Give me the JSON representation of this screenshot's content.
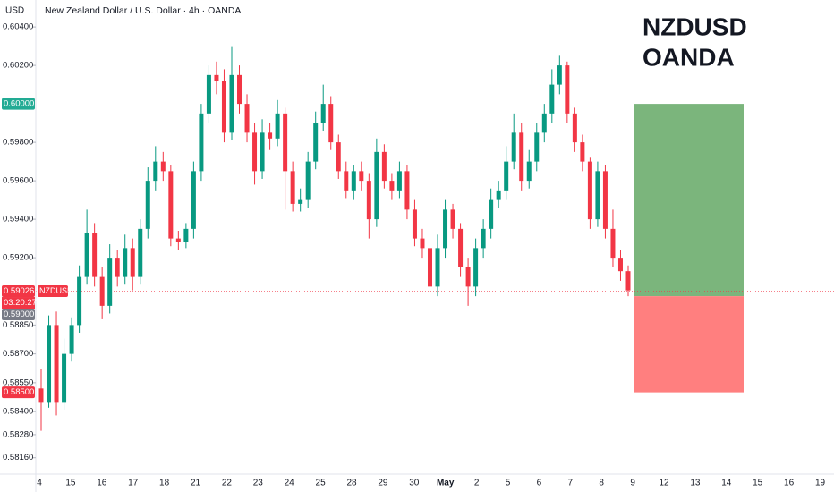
{
  "chart_data": {
    "type": "candlestick",
    "title": "New Zealand Dollar / U.S. Dollar · 4h · OANDA",
    "currency": "USD",
    "annotation": [
      "NZDUSD",
      "OANDA"
    ],
    "symbol": "NZDUSD",
    "countdown": "03:20:27",
    "last_price": {
      "value": 0.59026,
      "label": "0.59026"
    },
    "position": {
      "target": {
        "value": 0.6,
        "label": "0.60000"
      },
      "entry": {
        "value": 0.59,
        "label": "0.59000"
      },
      "stop": {
        "value": 0.585,
        "label": "0.58500"
      }
    },
    "categories": [
      "4",
      "15",
      "16",
      "17",
      "18",
      "21",
      "22",
      "23",
      "24",
      "25",
      "28",
      "29",
      "30",
      "May",
      "2",
      "5",
      "6",
      "7",
      "8",
      "9",
      "12",
      "13",
      "14",
      "15",
      "16",
      "19"
    ],
    "up_color": "#089981",
    "down_color": "#f23645",
    "ylim": [
      0.58075,
      0.6054
    ],
    "yticks": [
      {
        "value": 0.604,
        "label": "0.60400"
      },
      {
        "value": 0.602,
        "label": "0.60200"
      },
      {
        "value": 0.598,
        "label": "0.59800"
      },
      {
        "value": 0.596,
        "label": "0.59600"
      },
      {
        "value": 0.594,
        "label": "0.59400"
      },
      {
        "value": 0.592,
        "label": "0.59200"
      },
      {
        "value": 0.5885,
        "label": "0.58850"
      },
      {
        "value": 0.587,
        "label": "0.58700"
      },
      {
        "value": 0.5855,
        "label": "0.58550"
      },
      {
        "value": 0.584,
        "label": "0.58400"
      },
      {
        "value": 0.5828,
        "label": "0.58280"
      },
      {
        "value": 0.5816,
        "label": "0.58160"
      }
    ],
    "open": [
      0.5852,
      0.5845,
      0.5885,
      0.5845,
      0.587,
      0.5885,
      0.591,
      0.5933,
      0.591,
      0.5895,
      0.592,
      0.591,
      0.5925,
      0.591,
      0.5935,
      0.596,
      0.597,
      0.5965,
      0.593,
      0.5928,
      0.5935,
      0.5965,
      0.5995,
      0.6015,
      0.6012,
      0.5985,
      0.6015,
      0.6,
      0.5985,
      0.5965,
      0.5985,
      0.5982,
      0.5995,
      0.5965,
      0.5948,
      0.595,
      0.597,
      0.599,
      0.6,
      0.598,
      0.5965,
      0.5955,
      0.5965,
      0.596,
      0.594,
      0.5975,
      0.596,
      0.5955,
      0.5965,
      0.5945,
      0.593,
      0.5925,
      0.5905,
      0.5925,
      0.5945,
      0.5935,
      0.5915,
      0.5905,
      0.5925,
      0.5935,
      0.595,
      0.5955,
      0.597,
      0.5985,
      0.596,
      0.597,
      0.5985,
      0.5995,
      0.601,
      0.602,
      0.5995,
      0.598,
      0.597,
      0.594,
      0.5965,
      0.5935,
      0.592,
      0.5913
    ],
    "high": [
      0.5862,
      0.589,
      0.5892,
      0.5878,
      0.5889,
      0.5916,
      0.5945,
      0.5938,
      0.5915,
      0.5927,
      0.5924,
      0.5932,
      0.593,
      0.594,
      0.5967,
      0.5978,
      0.5975,
      0.5968,
      0.5934,
      0.5938,
      0.597,
      0.6,
      0.602,
      0.6022,
      0.6018,
      0.603,
      0.602,
      0.6005,
      0.599,
      0.5992,
      0.599,
      0.6002,
      0.5998,
      0.597,
      0.5956,
      0.5975,
      0.5996,
      0.601,
      0.6004,
      0.5984,
      0.597,
      0.5968,
      0.597,
      0.5964,
      0.5982,
      0.5979,
      0.5964,
      0.597,
      0.5968,
      0.595,
      0.5935,
      0.5928,
      0.5932,
      0.595,
      0.5948,
      0.5938,
      0.592,
      0.593,
      0.594,
      0.5956,
      0.596,
      0.5978,
      0.5995,
      0.599,
      0.5976,
      0.599,
      0.6,
      0.6018,
      0.6025,
      0.6022,
      0.5998,
      0.5984,
      0.5972,
      0.597,
      0.5968,
      0.5945,
      0.5924,
      0.5916
    ],
    "low": [
      0.583,
      0.5842,
      0.5838,
      0.5841,
      0.5866,
      0.5881,
      0.5906,
      0.5905,
      0.5888,
      0.5891,
      0.5905,
      0.5906,
      0.5903,
      0.5906,
      0.593,
      0.5955,
      0.596,
      0.5926,
      0.5924,
      0.5925,
      0.593,
      0.596,
      0.599,
      0.6005,
      0.598,
      0.5981,
      0.5995,
      0.598,
      0.5958,
      0.5961,
      0.5976,
      0.5978,
      0.5945,
      0.5944,
      0.5944,
      0.5946,
      0.5966,
      0.5986,
      0.5976,
      0.5961,
      0.5951,
      0.595,
      0.5955,
      0.593,
      0.5936,
      0.5956,
      0.595,
      0.5951,
      0.594,
      0.5926,
      0.592,
      0.5896,
      0.59,
      0.592,
      0.593,
      0.591,
      0.5895,
      0.59,
      0.592,
      0.593,
      0.5946,
      0.595,
      0.5966,
      0.5955,
      0.5956,
      0.5965,
      0.598,
      0.599,
      0.6005,
      0.599,
      0.5975,
      0.5965,
      0.5935,
      0.5936,
      0.593,
      0.5915,
      0.5908,
      0.59
    ],
    "close": [
      0.5845,
      0.5885,
      0.5845,
      0.587,
      0.5885,
      0.591,
      0.5933,
      0.591,
      0.5895,
      0.592,
      0.591,
      0.5925,
      0.591,
      0.5935,
      0.596,
      0.597,
      0.5965,
      0.593,
      0.5928,
      0.5935,
      0.5965,
      0.5995,
      0.6015,
      0.6012,
      0.5985,
      0.6015,
      0.6,
      0.5985,
      0.5965,
      0.5985,
      0.5982,
      0.5995,
      0.5965,
      0.5948,
      0.595,
      0.597,
      0.599,
      0.6,
      0.598,
      0.5965,
      0.5955,
      0.5965,
      0.596,
      0.594,
      0.5975,
      0.596,
      0.5955,
      0.5965,
      0.5945,
      0.593,
      0.5925,
      0.5905,
      0.5925,
      0.5945,
      0.5935,
      0.5915,
      0.5905,
      0.5925,
      0.5935,
      0.595,
      0.5955,
      0.597,
      0.5985,
      0.596,
      0.597,
      0.5985,
      0.5995,
      0.601,
      0.602,
      0.5995,
      0.598,
      0.597,
      0.594,
      0.5965,
      0.5935,
      0.592,
      0.5913,
      0.5903
    ]
  }
}
